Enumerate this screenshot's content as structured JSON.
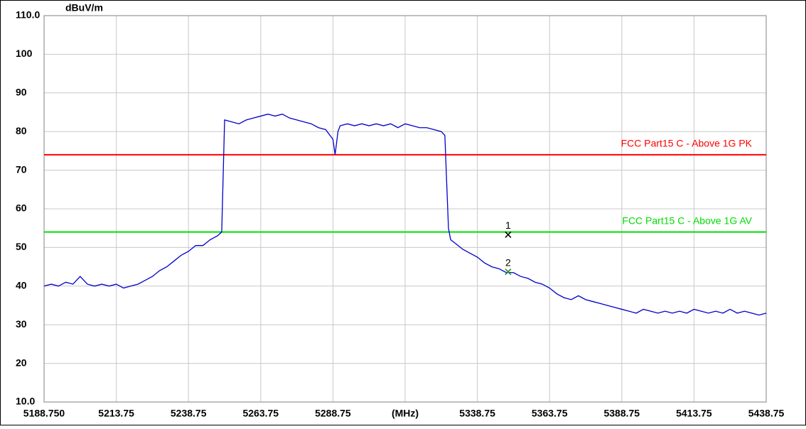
{
  "chart_data": {
    "type": "line",
    "y_label": "dBuV/m",
    "xlim": [
      5188.75,
      5438.75
    ],
    "xticks": [
      {
        "value": 5188.75,
        "label": "5188.750"
      },
      5213.75,
      5238.75,
      5263.75,
      5288.75,
      {
        "value": 5313.75,
        "label": "(MHz)"
      },
      5338.75,
      5363.75,
      5388.75,
      5413.75,
      5438.75
    ],
    "ylim": [
      10,
      110
    ],
    "yticks": [
      {
        "value": 10,
        "label": "10.0"
      },
      20,
      30,
      40,
      50,
      60,
      70,
      80,
      90,
      100,
      {
        "value": 110,
        "label": "110.0"
      }
    ],
    "grid": true,
    "series": [
      {
        "color": "#0000cc",
        "x": [
          5188.75,
          5191.25,
          5193.75,
          5196.25,
          5198.75,
          5201.25,
          5203.75,
          5206.25,
          5208.75,
          5211.25,
          5213.75,
          5216.25,
          5218.75,
          5221.25,
          5223.75,
          5226.25,
          5228.75,
          5231.25,
          5233.75,
          5236.25,
          5238.75,
          5241.25,
          5243.75,
          5246.25,
          5248.75,
          5250.25,
          5251.25,
          5253.75,
          5256.25,
          5258.75,
          5261.25,
          5263.75,
          5266.25,
          5268.75,
          5271.25,
          5273.75,
          5276.25,
          5278.75,
          5281.25,
          5283.75,
          5286.25,
          5288.75,
          5289.5,
          5290.5,
          5291.25,
          5293.75,
          5296.25,
          5298.75,
          5301.25,
          5303.75,
          5306.25,
          5308.75,
          5311.25,
          5313.75,
          5316.25,
          5318.75,
          5321.25,
          5323.75,
          5326.25,
          5327.5,
          5328.75,
          5329.5,
          5331.25,
          5333.75,
          5336.25,
          5338.75,
          5341.25,
          5343.75,
          5346.25,
          5348.75,
          5351.25,
          5353.75,
          5356.25,
          5358.75,
          5361.25,
          5363.75,
          5366.25,
          5368.75,
          5371.25,
          5373.75,
          5376.25,
          5378.75,
          5381.25,
          5383.75,
          5386.25,
          5388.75,
          5391.25,
          5393.75,
          5396.25,
          5398.75,
          5401.25,
          5403.75,
          5406.25,
          5408.75,
          5411.25,
          5413.75,
          5416.25,
          5418.75,
          5421.25,
          5423.75,
          5426.25,
          5428.75,
          5431.25,
          5433.75,
          5436.25,
          5438.75
        ],
        "values": [
          40,
          40.5,
          40,
          41,
          40.5,
          42.5,
          40.5,
          40,
          40.5,
          40,
          40.5,
          39.5,
          40,
          40.5,
          41.5,
          42.5,
          44,
          45,
          46.5,
          48,
          49,
          50.5,
          50.5,
          52,
          53,
          54,
          83,
          82.5,
          82,
          83,
          83.5,
          84,
          84.5,
          84,
          84.5,
          83.5,
          83,
          82.5,
          82,
          81,
          80.5,
          78,
          74,
          80,
          81.5,
          82,
          81.5,
          82,
          81.5,
          82,
          81.5,
          82,
          81,
          82,
          81.5,
          81,
          81,
          80.5,
          80,
          79,
          55,
          52,
          51,
          49.5,
          48.5,
          47.5,
          46,
          45,
          44.5,
          43.5,
          43.5,
          42.5,
          42,
          41,
          40.5,
          39.5,
          38,
          37,
          36.5,
          37.5,
          36.5,
          36,
          35.5,
          35,
          34.5,
          34,
          33.5,
          33,
          34,
          33.5,
          33,
          33.5,
          33,
          33.5,
          33,
          34,
          33.5,
          33,
          33.5,
          33,
          34,
          33,
          33.5,
          33,
          32.5,
          33
        ]
      }
    ],
    "limits": [
      {
        "name": "FCC Part15 C - Above 1G PK",
        "color": "#ff0000",
        "value": 74
      },
      {
        "name": "FCC Part15 C - Above 1G AV",
        "color": "#00dd00",
        "value": 54
      }
    ],
    "markers": [
      {
        "label": "1",
        "x": 5349.4,
        "y": 53.3
      },
      {
        "label": "2",
        "x": 5349.4,
        "y": 43.7
      }
    ]
  }
}
